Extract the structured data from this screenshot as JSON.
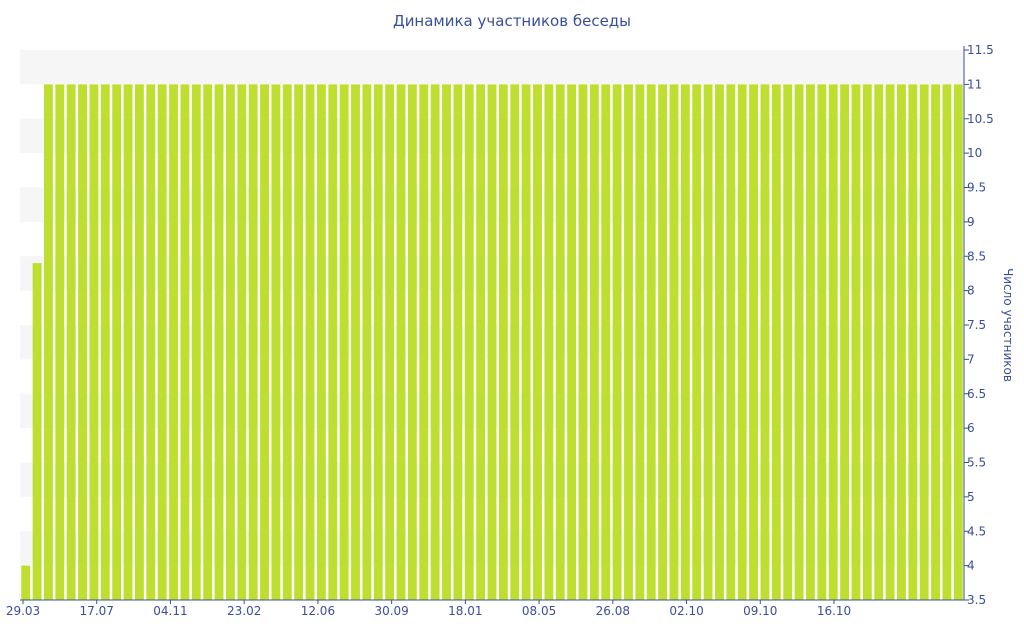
{
  "chart_data": {
    "type": "bar",
    "title": "Динамика участников беседы",
    "xlabel": "",
    "ylabel": "Число участников",
    "ylim": [
      3.5,
      11.5
    ],
    "y_ticks": [
      "3.5",
      "4",
      "4.5",
      "5",
      "5.5",
      "6",
      "6.5",
      "7",
      "7.5",
      "8",
      "8.5",
      "9",
      "9.5",
      "10",
      "10.5",
      "11",
      "11.5"
    ],
    "y_axis_side": "right",
    "grid": "horizontal bands",
    "x_tick_labels": [
      "29.03",
      "17.07",
      "04.11",
      "23.02",
      "12.06",
      "30.09",
      "18.01",
      "08.05",
      "26.08",
      "02.10",
      "09.10",
      "16.10"
    ],
    "values": [
      4,
      8.4,
      11,
      11,
      11,
      11,
      11,
      11,
      11,
      11,
      11,
      11,
      11,
      11,
      11,
      11,
      11,
      11,
      11,
      11,
      11,
      11,
      11,
      11,
      11,
      11,
      11,
      11,
      11,
      11,
      11,
      11,
      11,
      11,
      11,
      11,
      11,
      11,
      11,
      11,
      11,
      11,
      11,
      11,
      11,
      11,
      11,
      11,
      11,
      11,
      11,
      11,
      11,
      11,
      11,
      11,
      11,
      11,
      11,
      11,
      11,
      11,
      11,
      11,
      11,
      11,
      11,
      11,
      11,
      11,
      11,
      11,
      11,
      11,
      11,
      11,
      11,
      11,
      11,
      11,
      11,
      11,
      11
    ],
    "bar_color": "#bfdf30",
    "band_color": "#f6f6f6",
    "axis_color": "#3a4f9a"
  }
}
